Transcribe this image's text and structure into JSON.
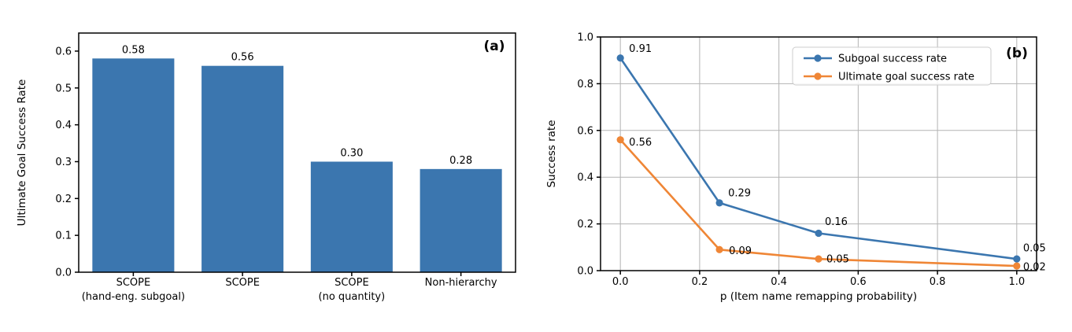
{
  "figure": {
    "background": "#ffffff",
    "panels": [
      {
        "panel_label": "(a)"
      },
      {
        "panel_label": "(b)"
      }
    ]
  },
  "colors": {
    "bar_blue": "#3b76af",
    "line_blue": "#3b76af",
    "line_orange": "#ef8636",
    "grid": "#b3b3b3",
    "spine": "#000000",
    "legend_border": "#cccccc",
    "text": "#000000"
  },
  "chart_data": [
    {
      "id": "a",
      "type": "bar",
      "panel_label": "(a)",
      "title": "",
      "xlabel": "",
      "ylabel": "Ultimate Goal Success Rate",
      "categories": [
        "SCOPE\n(hand-eng. subgoal)",
        "SCOPE",
        "SCOPE\n(no quantity)",
        "Non-hierarchy"
      ],
      "values": [
        0.58,
        0.56,
        0.3,
        0.28
      ],
      "bar_labels": [
        "0.58",
        "0.56",
        "0.30",
        "0.28"
      ],
      "yticks": [
        "0.0",
        "0.1",
        "0.2",
        "0.3",
        "0.4",
        "0.5",
        "0.6"
      ],
      "ytick_values": [
        0.0,
        0.1,
        0.2,
        0.3,
        0.4,
        0.5,
        0.6
      ],
      "ylim": [
        0,
        0.649
      ],
      "bar_color": "#3b76af",
      "grid": false,
      "legend": null
    },
    {
      "id": "b",
      "type": "line",
      "panel_label": "(b)",
      "title": "",
      "xlabel": "p (Item name remapping probability)",
      "ylabel": "Success rate",
      "x": [
        0.0,
        0.25,
        0.5,
        1.0
      ],
      "series": [
        {
          "name": "Subgoal success rate",
          "color": "#3b76af",
          "values": [
            0.91,
            0.29,
            0.16,
            0.05
          ],
          "point_labels": [
            "0.91",
            "0.29",
            "0.16",
            "0.05"
          ]
        },
        {
          "name": "Ultimate goal success rate",
          "color": "#ef8636",
          "values": [
            0.56,
            0.09,
            0.05,
            0.02
          ],
          "point_labels": [
            "0.56",
            "0.09",
            "0.05",
            "0.02"
          ]
        }
      ],
      "xticks": [
        "0.0",
        "0.2",
        "0.4",
        "0.6",
        "0.8",
        "1.0"
      ],
      "xtick_values": [
        0.0,
        0.2,
        0.4,
        0.6,
        0.8,
        1.0
      ],
      "yticks": [
        "0.0",
        "0.2",
        "0.4",
        "0.6",
        "0.8",
        "1.0"
      ],
      "ytick_values": [
        0.0,
        0.2,
        0.4,
        0.6,
        0.8,
        1.0
      ],
      "xlim": [
        -0.05,
        1.05
      ],
      "ylim": [
        0,
        1.0
      ],
      "grid": true,
      "legend": {
        "position": "upper right"
      }
    }
  ]
}
